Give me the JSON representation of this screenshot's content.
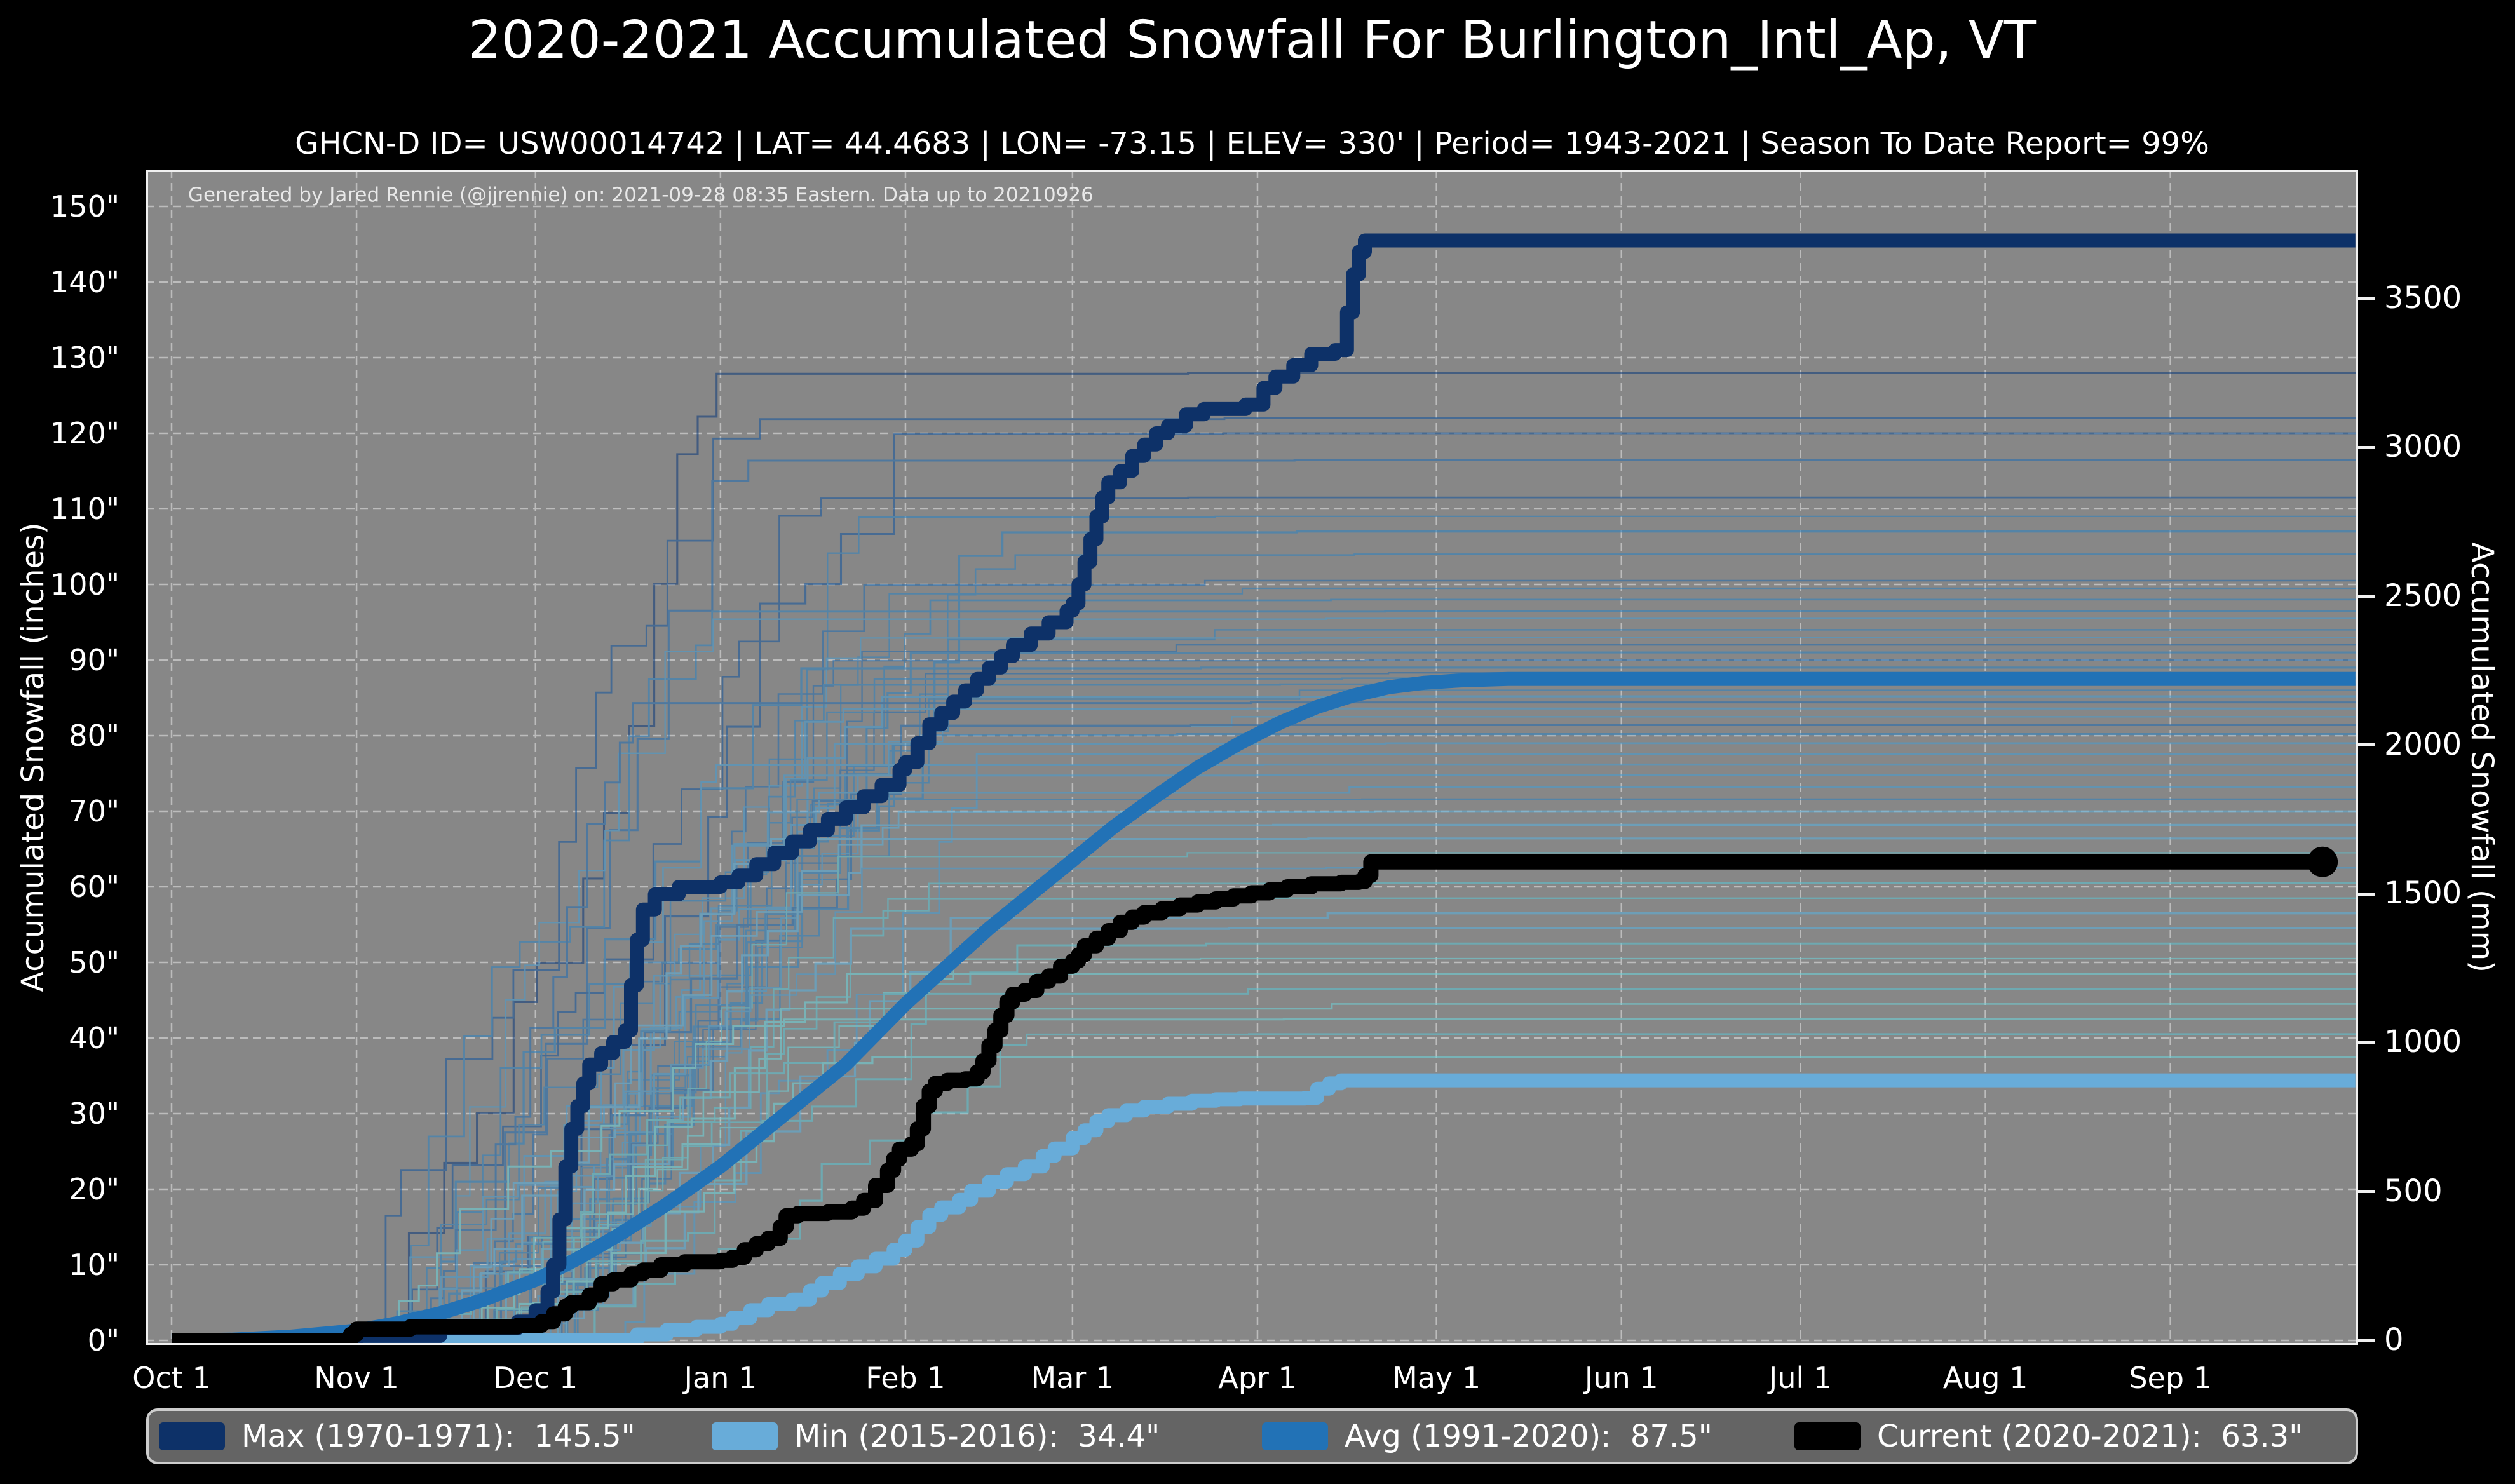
{
  "figure": {
    "title": "2020-2021 Accumulated Snowfall For Burlington_Intl_Ap, VT",
    "subtitle": "GHCN-D ID= USW00014742 | LAT= 44.4683 | LON= -73.15 | ELEV= 330' | Period= 1943-2021 | Season To Date Report= 99%",
    "annotation": "Generated by Jared Rennie (@jjrennie) on: 2021-09-28 08:35 Eastern. Data up to 20210926"
  },
  "axes": {
    "left_label": "Accumulated Snowfall (inches)",
    "right_label": "Accumulated Snowfall (mm)",
    "left_tick_values": [
      0,
      10,
      20,
      30,
      40,
      50,
      60,
      70,
      80,
      90,
      100,
      110,
      120,
      130,
      140,
      150
    ],
    "left_tick_suffix": "\"",
    "right_tick_values": [
      0,
      500,
      1000,
      1500,
      2000,
      2500,
      3000,
      3500
    ],
    "mm_per_inch": 25.4,
    "x_tick_labels": [
      "Oct 1",
      "Nov 1",
      "Dec 1",
      "Jan 1",
      "Feb 1",
      "Mar 1",
      "Apr 1",
      "May 1",
      "Jun 1",
      "Jul 1",
      "Aug 1",
      "Sep 1"
    ],
    "x_tick_days": [
      0,
      31,
      61,
      92,
      123,
      151,
      182,
      212,
      243,
      273,
      304,
      335
    ]
  },
  "legend": {
    "items": [
      {
        "name": "max",
        "label": "Max (1970-1971):  145.5\"",
        "color": "#0d3168"
      },
      {
        "name": "min",
        "label": "Min (2015-2016):  34.4\"",
        "color": "#68acd9"
      },
      {
        "name": "avg",
        "label": "Avg (1991-2020):  87.5\"",
        "color": "#2272b6"
      },
      {
        "name": "current",
        "label": "Current (2020-2021):  63.3\"",
        "color": "#000000"
      }
    ],
    "item_offsets": [
      16,
      886,
      1752,
      2590
    ]
  },
  "colors": {
    "page_bg": "#000000",
    "plot_bg": "#878787",
    "grid": "#c6c6c6",
    "spine": "#f0f0f0",
    "text": "#ffffff",
    "legend_bg": "#646464",
    "legend_border": "#cdcdcd"
  },
  "chart_data": {
    "type": "line",
    "title": "2020-2021 Accumulated Snowfall For Burlington_Intl_Ap, VT",
    "xlabel": "",
    "ylabel": "Accumulated Snowfall (inches)",
    "ylabel_right": "Accumulated Snowfall (mm)",
    "x_unit": "days since Oct 1",
    "xlim": [
      -4.3,
      366.5
    ],
    "ylim": [
      -0.6,
      154.9
    ],
    "grid": true,
    "legend_position": "bottom",
    "series": [
      {
        "name": "Max (1970-1971)",
        "total_inches": 145.5,
        "color": "#0d3168",
        "width": 22,
        "step": true,
        "points": [
          [
            0,
            0
          ],
          [
            25,
            0
          ],
          [
            31,
            0.6
          ],
          [
            45,
            1.6
          ],
          [
            58,
            2.5
          ],
          [
            61,
            4
          ],
          [
            63,
            6.5
          ],
          [
            64,
            10
          ],
          [
            65,
            16
          ],
          [
            66,
            23
          ],
          [
            67,
            28
          ],
          [
            68,
            31
          ],
          [
            69,
            34
          ],
          [
            70,
            36.5
          ],
          [
            72,
            38
          ],
          [
            74,
            39.5
          ],
          [
            76,
            41
          ],
          [
            77,
            47
          ],
          [
            78,
            53
          ],
          [
            79,
            57
          ],
          [
            81,
            59
          ],
          [
            85,
            60
          ],
          [
            92,
            60.6
          ],
          [
            95,
            61.5
          ],
          [
            98,
            63
          ],
          [
            101,
            64.5
          ],
          [
            104,
            66
          ],
          [
            107,
            67.5
          ],
          [
            110,
            69
          ],
          [
            113,
            70.5
          ],
          [
            116,
            72
          ],
          [
            119,
            73.5
          ],
          [
            122,
            75.5
          ],
          [
            123,
            76.5
          ],
          [
            125,
            79
          ],
          [
            127,
            81.5
          ],
          [
            129,
            83
          ],
          [
            131,
            84.5
          ],
          [
            133,
            86
          ],
          [
            135,
            87.5
          ],
          [
            137,
            89
          ],
          [
            139,
            90.5
          ],
          [
            141,
            92
          ],
          [
            144,
            93.5
          ],
          [
            147,
            95
          ],
          [
            150,
            96.5
          ],
          [
            151,
            97.5
          ],
          [
            152,
            100
          ],
          [
            153,
            103
          ],
          [
            154,
            106
          ],
          [
            155,
            109
          ],
          [
            156,
            111.5
          ],
          [
            157,
            113.5
          ],
          [
            159,
            115
          ],
          [
            161,
            117
          ],
          [
            163,
            118.5
          ],
          [
            165,
            120
          ],
          [
            167,
            121
          ],
          [
            170,
            122.5
          ],
          [
            173,
            123.2
          ],
          [
            180,
            123.8
          ],
          [
            183,
            126
          ],
          [
            185,
            127.5
          ],
          [
            188,
            129
          ],
          [
            191,
            130.5
          ],
          [
            195,
            131
          ],
          [
            197,
            136
          ],
          [
            198,
            141
          ],
          [
            199,
            144
          ],
          [
            200,
            145.5
          ],
          [
            366,
            145.5
          ]
        ]
      },
      {
        "name": "Avg (1991-2020)",
        "total_inches": 87.5,
        "color": "#2272b6",
        "width": 22,
        "step": false,
        "points": [
          [
            0,
            0
          ],
          [
            10,
            0.1
          ],
          [
            20,
            0.5
          ],
          [
            31,
            1.3
          ],
          [
            38,
            2.3
          ],
          [
            45,
            3.6
          ],
          [
            52,
            5.3
          ],
          [
            61,
            8
          ],
          [
            68,
            10.8
          ],
          [
            75,
            14
          ],
          [
            83,
            18
          ],
          [
            92,
            23
          ],
          [
            99,
            27.5
          ],
          [
            106,
            32
          ],
          [
            113,
            36.5
          ],
          [
            123,
            44.5
          ],
          [
            130,
            49.5
          ],
          [
            137,
            54.5
          ],
          [
            144,
            59
          ],
          [
            151,
            63.5
          ],
          [
            158,
            68
          ],
          [
            165,
            72
          ],
          [
            172,
            75.8
          ],
          [
            179,
            79
          ],
          [
            186,
            81.8
          ],
          [
            192,
            83.8
          ],
          [
            198,
            85.3
          ],
          [
            204,
            86.4
          ],
          [
            210,
            87
          ],
          [
            216,
            87.3
          ],
          [
            224,
            87.5
          ],
          [
            366,
            87.5
          ]
        ]
      },
      {
        "name": "Min (2015-2016)",
        "total_inches": 34.4,
        "color": "#68acd9",
        "width": 22,
        "step": true,
        "points": [
          [
            0,
            0
          ],
          [
            74,
            0
          ],
          [
            78,
            0.8
          ],
          [
            83,
            1.4
          ],
          [
            88,
            1.8
          ],
          [
            92,
            2.2
          ],
          [
            94,
            3
          ],
          [
            97,
            4
          ],
          [
            100,
            4.8
          ],
          [
            104,
            5.4
          ],
          [
            107,
            6.6
          ],
          [
            109,
            7.6
          ],
          [
            112,
            8.8
          ],
          [
            115,
            9.8
          ],
          [
            118,
            10.8
          ],
          [
            121,
            12
          ],
          [
            123,
            13.2
          ],
          [
            125,
            15
          ],
          [
            127,
            16.6
          ],
          [
            129,
            17.6
          ],
          [
            132,
            18.6
          ],
          [
            134,
            19.8
          ],
          [
            137,
            21
          ],
          [
            140,
            22
          ],
          [
            143,
            23
          ],
          [
            146,
            24.4
          ],
          [
            148,
            25.4
          ],
          [
            151,
            26.8
          ],
          [
            153,
            27.8
          ],
          [
            155,
            29
          ],
          [
            157,
            29.8
          ],
          [
            160,
            30.4
          ],
          [
            163,
            30.9
          ],
          [
            167,
            31.3
          ],
          [
            171,
            31.7
          ],
          [
            175,
            31.9
          ],
          [
            179,
            32
          ],
          [
            190,
            32.1
          ],
          [
            192,
            33.3
          ],
          [
            194,
            34
          ],
          [
            196,
            34.4
          ],
          [
            366,
            34.4
          ]
        ]
      },
      {
        "name": "Current (2020-2021)",
        "total_inches": 63.3,
        "color": "#000000",
        "width": 24,
        "step": true,
        "end_dot": true,
        "points": [
          [
            0,
            0
          ],
          [
            28,
            0
          ],
          [
            30,
            0.8
          ],
          [
            31,
            1.5
          ],
          [
            40,
            1.8
          ],
          [
            58,
            2
          ],
          [
            62,
            2.5
          ],
          [
            64,
            3.5
          ],
          [
            66,
            4.5
          ],
          [
            67,
            5
          ],
          [
            70,
            6
          ],
          [
            72,
            7.5
          ],
          [
            74,
            8
          ],
          [
            77,
            8.8
          ],
          [
            79,
            9.3
          ],
          [
            82,
            10
          ],
          [
            86,
            10.4
          ],
          [
            92,
            10.6
          ],
          [
            94,
            11
          ],
          [
            96,
            12
          ],
          [
            98,
            12.8
          ],
          [
            100,
            13.5
          ],
          [
            102,
            15
          ],
          [
            103,
            16.5
          ],
          [
            105,
            16.8
          ],
          [
            110,
            17
          ],
          [
            114,
            17.5
          ],
          [
            116,
            18.5
          ],
          [
            118,
            20.5
          ],
          [
            120,
            22.5
          ],
          [
            121,
            24
          ],
          [
            122,
            25.3
          ],
          [
            124,
            26
          ],
          [
            125,
            28
          ],
          [
            126,
            31
          ],
          [
            127,
            33
          ],
          [
            128,
            34
          ],
          [
            130,
            34.4
          ],
          [
            133,
            34.6
          ],
          [
            135,
            35.5
          ],
          [
            136,
            37
          ],
          [
            137,
            39
          ],
          [
            138,
            41
          ],
          [
            139,
            43
          ],
          [
            140,
            44.8
          ],
          [
            141,
            45.8
          ],
          [
            143,
            46.3
          ],
          [
            145,
            47.5
          ],
          [
            147,
            48.2
          ],
          [
            149,
            49.5
          ],
          [
            151,
            50.2
          ],
          [
            152,
            51
          ],
          [
            153,
            52.2
          ],
          [
            155,
            53.2
          ],
          [
            157,
            54.2
          ],
          [
            159,
            55.3
          ],
          [
            161,
            56
          ],
          [
            163,
            56.6
          ],
          [
            166,
            57.1
          ],
          [
            169,
            57.6
          ],
          [
            172,
            58
          ],
          [
            175,
            58.4
          ],
          [
            178,
            58.8
          ],
          [
            181,
            59.2
          ],
          [
            184,
            59.6
          ],
          [
            187,
            60
          ],
          [
            191,
            60.4
          ],
          [
            196,
            60.6
          ],
          [
            199,
            60.7
          ],
          [
            200,
            61.5
          ],
          [
            201,
            63.3
          ],
          [
            360.5,
            63.3
          ]
        ]
      }
    ],
    "current_end_marker": {
      "day": 360.5,
      "value": 63.3,
      "radius": 24
    },
    "background_years": {
      "description": "thin lines: each season 1943-2021, estimated final accumulations",
      "finals": [
        128,
        122,
        120,
        116.5,
        111.5,
        109,
        107,
        104,
        100.5,
        99.5,
        98,
        96.5,
        95.5,
        94,
        93,
        92,
        91,
        90,
        89,
        88.3,
        87.6,
        86.8,
        86,
        85.2,
        84.4,
        83.6,
        82.5,
        81.4,
        80.2,
        79,
        77.6,
        76.2,
        74.8,
        73.2,
        71.6,
        70,
        68.2,
        66.4,
        64.5,
        62.5,
        60.5,
        58.5,
        56.5,
        54.5,
        52.5,
        50.5,
        48.5,
        46.5,
        44.5,
        42.5,
        40.5,
        37.5
      ],
      "palette": [
        "#16417c",
        "#1d5a9b",
        "#2a6fae",
        "#3383bd",
        "#4a9bcd",
        "#5caed8",
        "#5fc0cd",
        "#6fd0d6"
      ],
      "opacity": 0.6,
      "width": 2.6
    }
  }
}
